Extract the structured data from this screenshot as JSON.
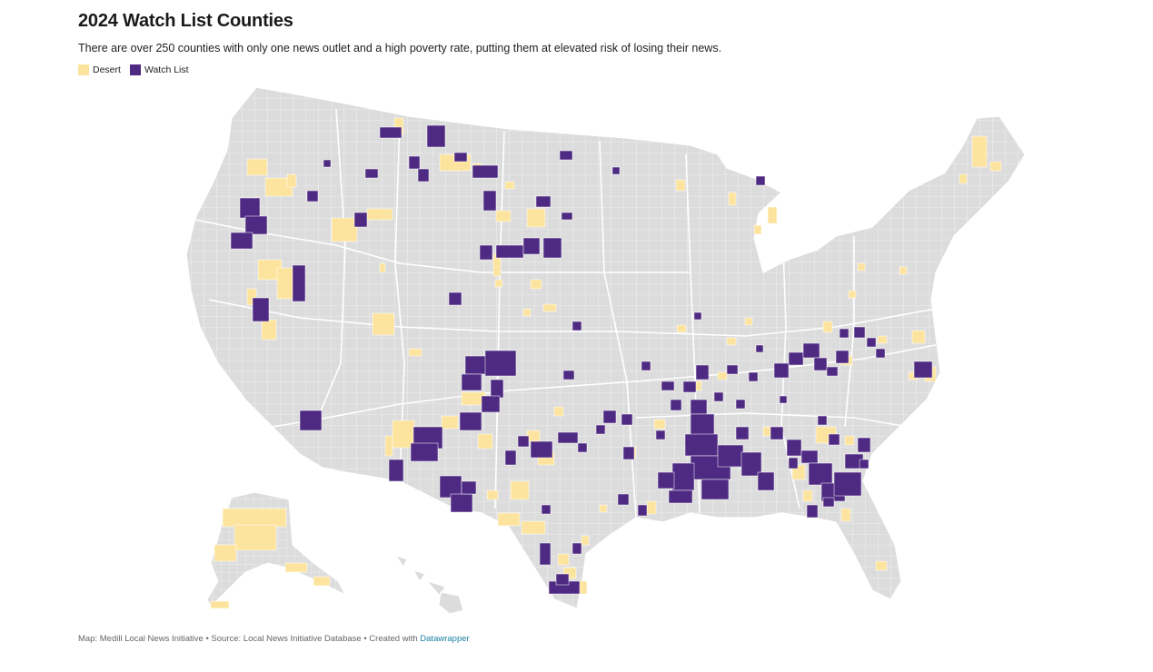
{
  "title": "2024 Watch List Counties",
  "subtitle": "There are over 250 counties with only one news outlet and a high poverty rate, putting them at elevated risk of losing their news.",
  "legend": [
    {
      "label": "Desert",
      "color": "#fde49e"
    },
    {
      "label": "Watch List",
      "color": "#4f2a82"
    }
  ],
  "colors": {
    "base": "#dcdcdc",
    "county_border": "#ffffff",
    "desert": "#fde49e",
    "watch": "#4f2a82"
  },
  "footer": {
    "text": "Map: Medill Local News Initiative • Source: Local News Initiative Database • Created with ",
    "link_text": "Datawrapper"
  }
}
